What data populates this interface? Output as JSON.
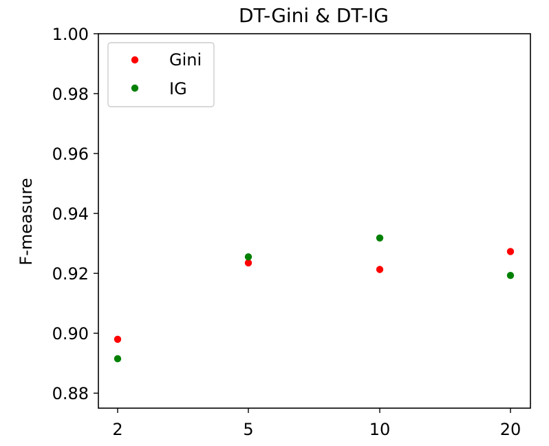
{
  "chart_data": {
    "type": "scatter",
    "title": "DT-Gini & DT-IG",
    "xlabel": "",
    "ylabel": "F-measure",
    "categories": [
      "2",
      "5",
      "10",
      "20"
    ],
    "ylim": [
      0.875,
      1.0
    ],
    "yticks": [
      "0.88",
      "0.90",
      "0.92",
      "0.94",
      "0.96",
      "0.98",
      "1.00"
    ],
    "legend_position": "top-left",
    "grid": false,
    "series": [
      {
        "name": "Gini",
        "color": "#ff0000",
        "values": [
          0.898,
          0.9235,
          0.9213,
          0.9273
        ]
      },
      {
        "name": "IG",
        "color": "#008000",
        "values": [
          0.8915,
          0.9255,
          0.9318,
          0.9193
        ]
      }
    ]
  }
}
